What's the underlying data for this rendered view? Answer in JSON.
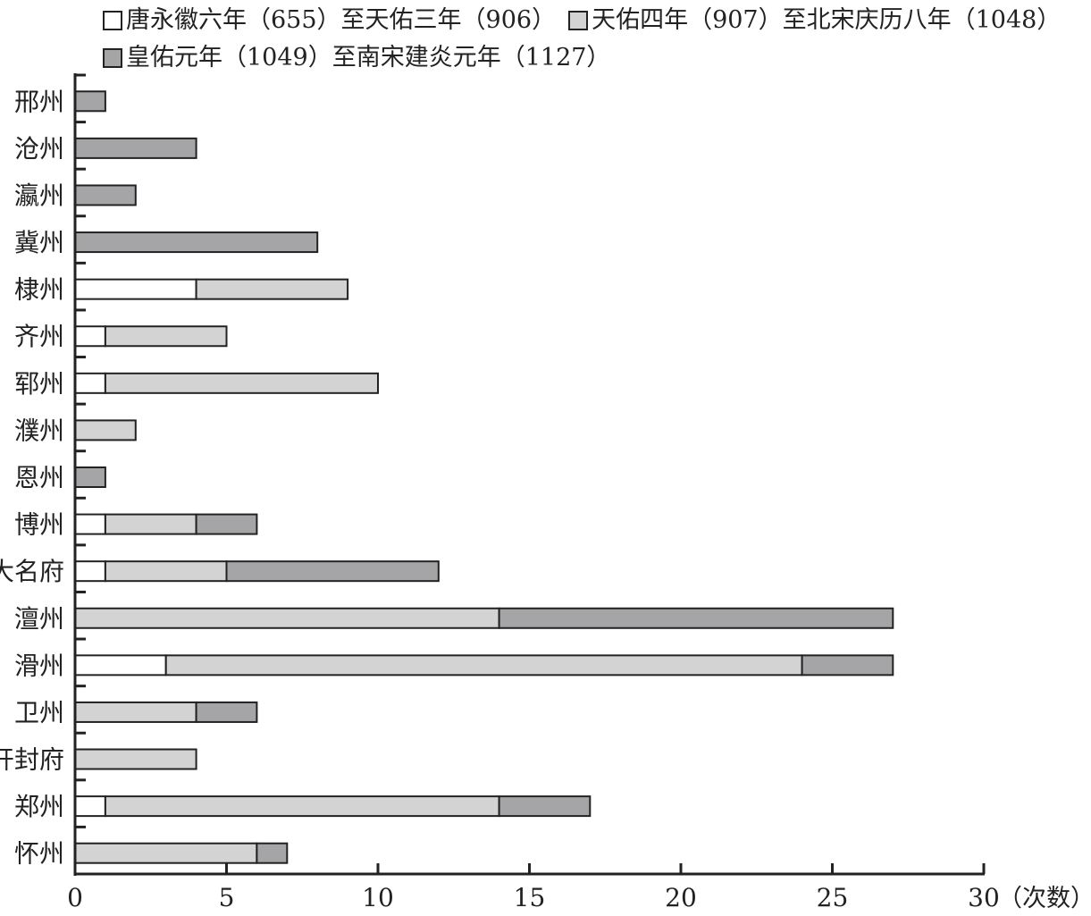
{
  "chart_data": {
    "type": "bar",
    "orientation": "horizontal",
    "stacked": true,
    "categories": [
      "邢州",
      "沧州",
      "瀛州",
      "冀州",
      "棣州",
      "齐州",
      "郓州",
      "濮州",
      "恩州",
      "博州",
      "大名府",
      "澶州",
      "滑州",
      "卫州",
      "开封府",
      "郑州",
      "怀州"
    ],
    "series": [
      {
        "name": "唐永徽六年（655）至天佑三年（906）",
        "color": "#ffffff",
        "values": [
          0,
          0,
          0,
          0,
          4,
          1,
          1,
          0,
          0,
          1,
          1,
          0,
          3,
          0,
          0,
          1,
          0
        ]
      },
      {
        "name": "天佑四年（907）至北宋庆历八年（1048）",
        "color": "#d3d3d3",
        "values": [
          0,
          0,
          0,
          0,
          5,
          4,
          9,
          2,
          0,
          3,
          4,
          14,
          21,
          4,
          4,
          13,
          6
        ]
      },
      {
        "name": "皇佑元年（1049）至南宋建炎元年（1127）",
        "color": "#a5a5a7",
        "values": [
          1,
          4,
          2,
          8,
          0,
          0,
          0,
          0,
          1,
          2,
          7,
          13,
          3,
          2,
          0,
          3,
          1
        ]
      }
    ],
    "xlim": [
      0,
      30
    ],
    "xticks": [
      "0",
      "5",
      "10",
      "15",
      "20",
      "25",
      "30"
    ],
    "xlabel": "（次数）",
    "legend_position": "top"
  }
}
